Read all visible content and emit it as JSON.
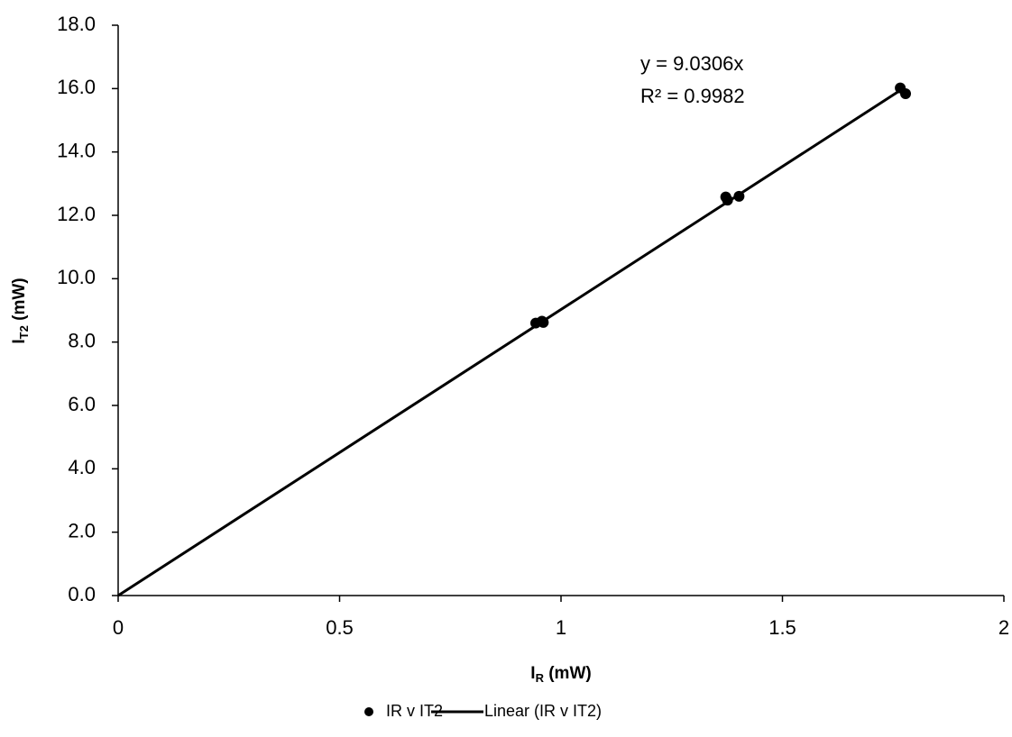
{
  "chart_data": {
    "type": "scatter",
    "xlabel": [
      "I",
      "R",
      " (mW)"
    ],
    "ylabel": [
      "I",
      "T2",
      " (mW)"
    ],
    "xlim": [
      0,
      2
    ],
    "ylim": [
      0,
      18
    ],
    "xticks": [
      0,
      0.5,
      1,
      1.5,
      2
    ],
    "yticks": [
      {
        "value": 0,
        "label": "0.0"
      },
      {
        "value": 2,
        "label": "2.0"
      },
      {
        "value": 4,
        "label": "4.0"
      },
      {
        "value": 6,
        "label": "6.0"
      },
      {
        "value": 8,
        "label": "8.0"
      },
      {
        "value": 10,
        "label": "10.0"
      },
      {
        "value": 12,
        "label": "12.0"
      },
      {
        "value": 14,
        "label": "14.0"
      },
      {
        "value": 16,
        "label": "16.0"
      },
      {
        "value": 18,
        "label": "18.0"
      }
    ],
    "series": [
      {
        "name": "IR v IT2",
        "color": "#000000",
        "x": [
          0.943,
          0.957,
          0.96,
          1.372,
          1.376,
          1.402,
          1.766,
          1.778
        ],
        "values": [
          8.6,
          8.66,
          8.62,
          12.58,
          12.48,
          12.6,
          16.02,
          15.84
        ]
      },
      {
        "name": "Linear (IR v IT2)",
        "color": "#000000",
        "line": true,
        "x": [
          0,
          1.77
        ],
        "values": [
          0,
          15.98
        ]
      }
    ],
    "annotations": [
      "y = 9.0306x",
      "R² = 0.9982"
    ],
    "grid": false
  }
}
